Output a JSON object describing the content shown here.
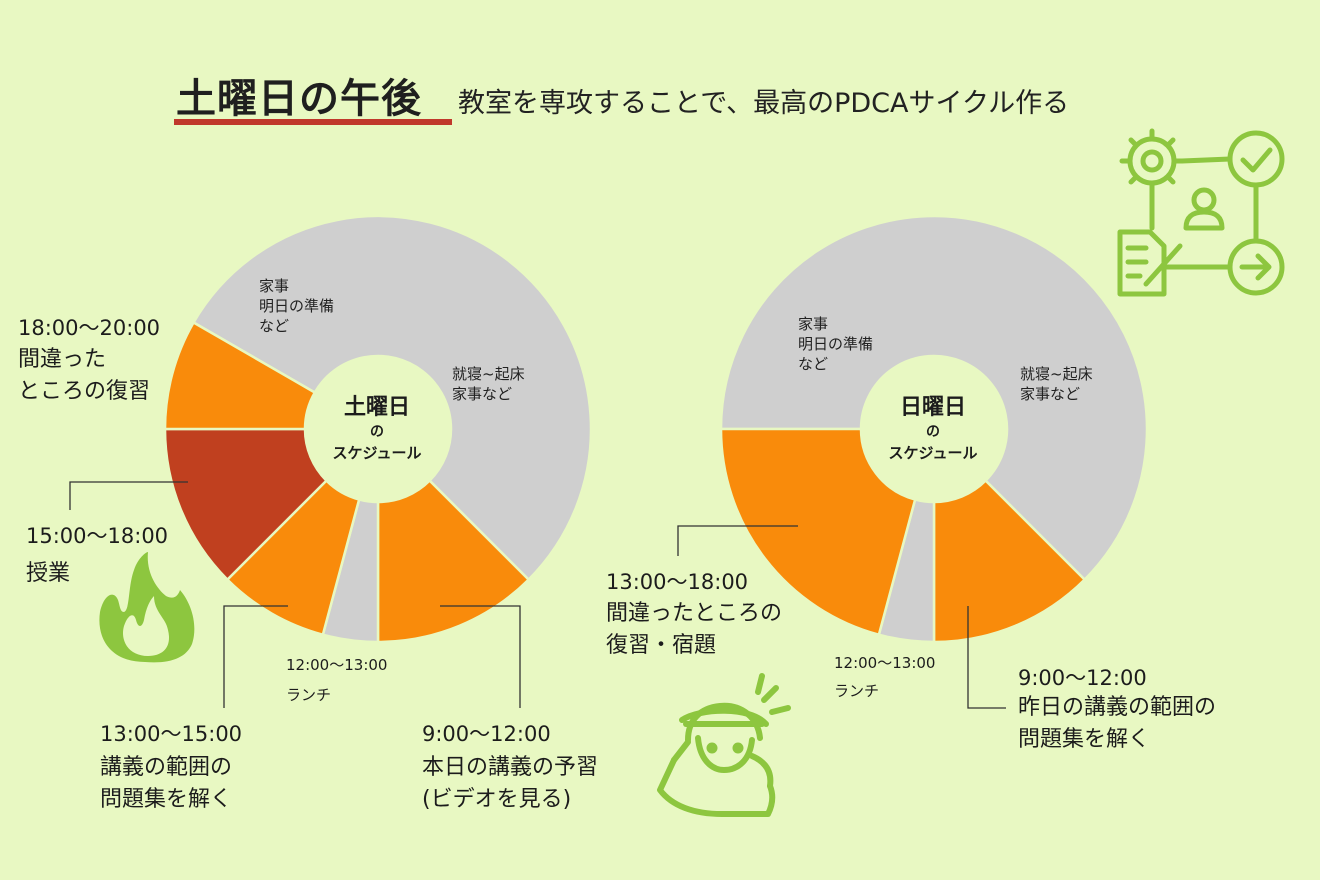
{
  "title": {
    "main": "土曜日の午後",
    "subtitle": "教室を専攻することで、最高のPDCAサイクル作る"
  },
  "colors": {
    "background": "#e8f8c2",
    "gray": "#cfcfcf",
    "orange": "#f98b0b",
    "red": "#c0401f",
    "accent_green": "#8dc63f",
    "underline": "#c0382b"
  },
  "chart_data": [
    {
      "type": "pie",
      "title": "土曜日",
      "center_no": "の",
      "center_sub": "スケジュール",
      "slices": [
        {
          "label": "就寝~起床\n家事など",
          "start": 20,
          "end": 33,
          "hours": 13,
          "color": "gray"
        },
        {
          "label": "本日の講義の予習\n(ビデオを見る)",
          "start": 9,
          "end": 12,
          "hours": 3,
          "color": "orange"
        },
        {
          "label": "ランチ",
          "start": 12,
          "end": 13,
          "hours": 1,
          "color": "gray"
        },
        {
          "label": "講義の範囲の\n問題集を解く",
          "start": 13,
          "end": 15,
          "hours": 2,
          "color": "orange"
        },
        {
          "label": "授業",
          "start": 15,
          "end": 18,
          "hours": 3,
          "color": "red"
        },
        {
          "label": "間違った\nところの復習",
          "start": 18,
          "end": 20,
          "hours": 2,
          "color": "orange"
        }
      ]
    },
    {
      "type": "pie",
      "title": "日曜日",
      "center_no": "の",
      "center_sub": "スケジュール",
      "slices": [
        {
          "label": "就寝~起床\n家事など",
          "start": 18,
          "end": 33,
          "hours": 15,
          "color": "gray"
        },
        {
          "label": "昨日の講義の範囲の\n問題集を解く",
          "start": 9,
          "end": 12,
          "hours": 3,
          "color": "orange"
        },
        {
          "label": "ランチ",
          "start": 12,
          "end": 13,
          "hours": 1,
          "color": "gray"
        },
        {
          "label": "間違ったところの\n復習・宿題",
          "start": 13,
          "end": 18,
          "hours": 5,
          "color": "orange"
        }
      ]
    }
  ],
  "saturday": {
    "inner_housework": [
      "家事",
      "明日の準備",
      "など"
    ],
    "inner_sleep": [
      "就寝~起床",
      "家事など"
    ],
    "time_1800": "18:00〜20:00",
    "text_1800": [
      "間違った",
      "ところの復習"
    ],
    "time_1500": "15:00〜18:00",
    "text_1500": "授業",
    "time_1200": "12:00〜13:00",
    "text_1200": "ランチ",
    "time_1300": "13:00〜15:00",
    "text_1300": [
      "講義の範囲の",
      "問題集を解く"
    ],
    "time_0900": "9:00〜12:00",
    "text_0900": [
      "本日の講義の予習",
      "(ビデオを見る)"
    ]
  },
  "sunday": {
    "inner_housework": [
      "家事",
      "明日の準備",
      "など"
    ],
    "inner_sleep": [
      "就寝~起床",
      "家事など"
    ],
    "time_1300": "13:00〜18:00",
    "text_1300": [
      "間違ったところの",
      "復習・宿題"
    ],
    "time_1200": "12:00〜13:00",
    "text_1200": "ランチ",
    "time_0900": "9:00〜12:00",
    "text_0900": [
      "昨日の講義の範囲の",
      "問題集を解く"
    ]
  },
  "icons": [
    "pdca-workflow-icon",
    "fire-icon",
    "studying-person-icon"
  ]
}
